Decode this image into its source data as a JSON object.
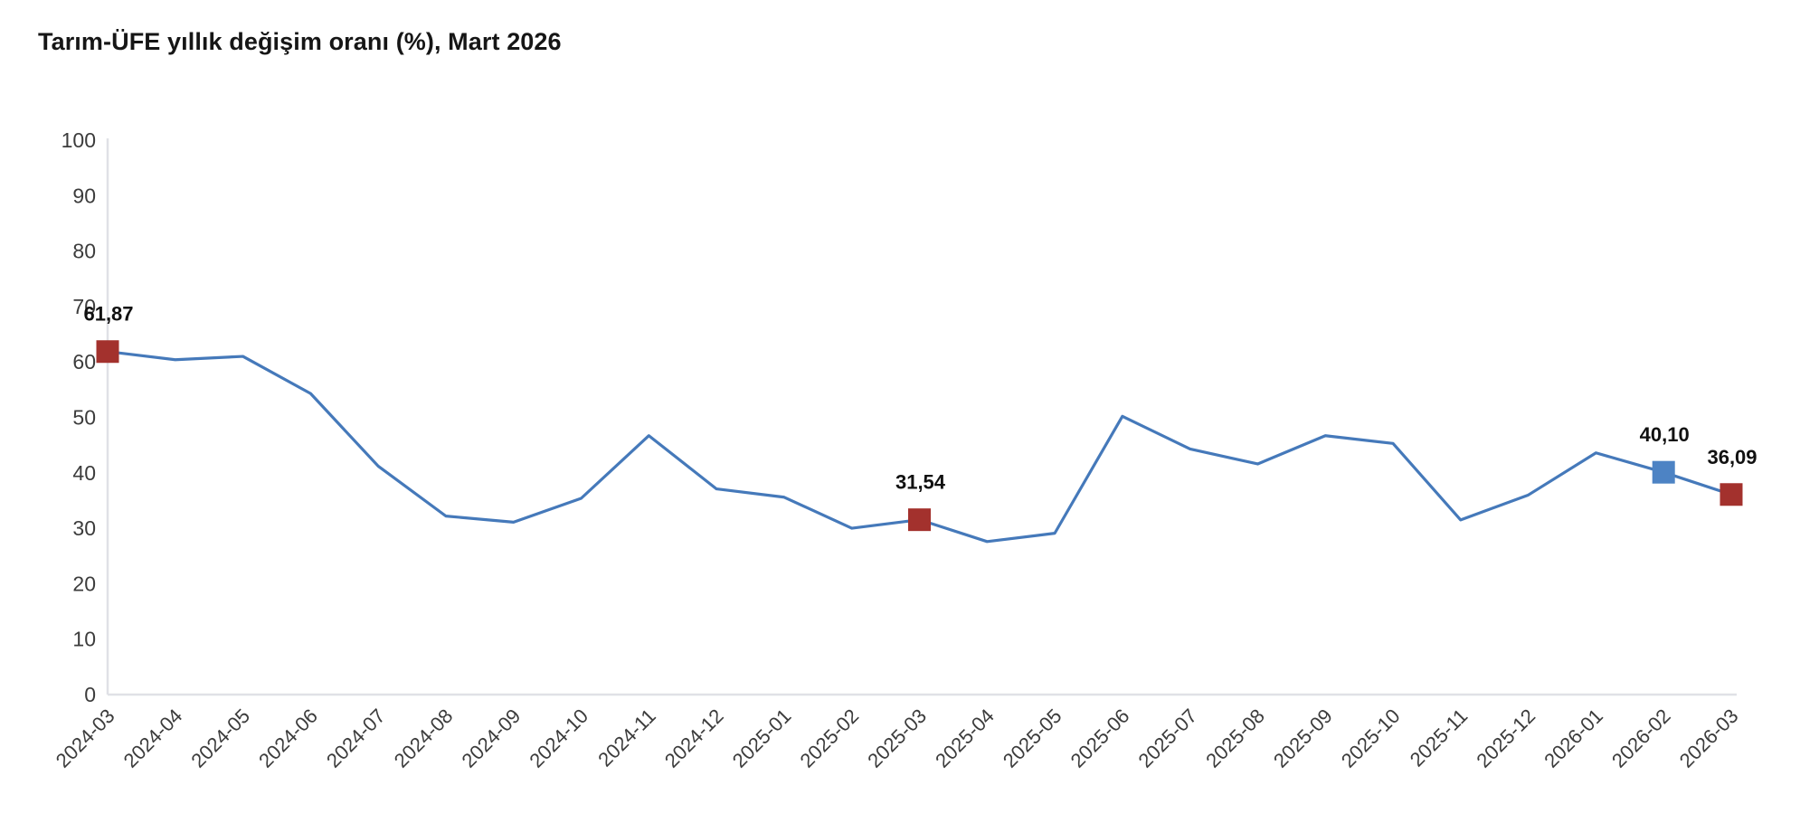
{
  "title": "Tarım-ÜFE yıllık değişim oranı (%), Mart 2026",
  "colors": {
    "line": "#4579BA",
    "marker_red": "#A3312D",
    "marker_blue": "#4D83C4",
    "axis": "#E0E1E6",
    "tick_text": "#3C3C3C",
    "title_text": "#161616",
    "annotation_text": "#111111",
    "background": "#FFFFFF"
  },
  "chart_data": {
    "type": "line",
    "title": "Tarım-ÜFE yıllık değişim oranı (%), Mart 2026",
    "x": [
      "2024-03",
      "2024-04",
      "2024-05",
      "2024-06",
      "2024-07",
      "2024-08",
      "2024-09",
      "2024-10",
      "2024-11",
      "2024-12",
      "2025-01",
      "2025-02",
      "2025-03",
      "2025-04",
      "2025-05",
      "2025-06",
      "2025-07",
      "2025-08",
      "2025-09",
      "2025-10",
      "2025-11",
      "2025-12",
      "2026-01",
      "2026-02",
      "2026-03"
    ],
    "values": [
      61.87,
      60.4,
      61.0,
      54.3,
      41.2,
      32.2,
      31.1,
      35.4,
      46.7,
      37.1,
      35.6,
      30.0,
      31.54,
      27.6,
      29.1,
      50.2,
      44.3,
      41.6,
      46.7,
      45.3,
      31.5,
      36.0,
      43.6,
      40.1,
      36.09
    ],
    "ylim": [
      0,
      100
    ],
    "ytick_step": 10,
    "grid": false,
    "legend": "none",
    "annotations": [
      {
        "x": "2024-03",
        "label": "61,87",
        "marker": "red"
      },
      {
        "x": "2025-03",
        "label": "31,54",
        "marker": "red"
      },
      {
        "x": "2026-02",
        "label": "40,10",
        "marker": "blue"
      },
      {
        "x": "2026-03",
        "label": "36,09",
        "marker": "red"
      }
    ]
  }
}
